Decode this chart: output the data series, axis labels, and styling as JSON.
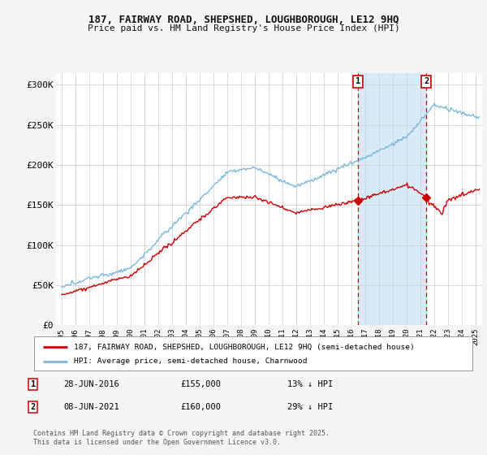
{
  "title1": "187, FAIRWAY ROAD, SHEPSHED, LOUGHBOROUGH, LE12 9HQ",
  "title2": "Price paid vs. HM Land Registry's House Price Index (HPI)",
  "ylabel_ticks": [
    "£0",
    "£50K",
    "£100K",
    "£150K",
    "£200K",
    "£250K",
    "£300K"
  ],
  "ytick_vals": [
    0,
    50000,
    100000,
    150000,
    200000,
    250000,
    300000
  ],
  "ylim": [
    0,
    315000
  ],
  "hpi_color": "#7ab8e0",
  "hpi_fill_color": "#d6eaf8",
  "price_color": "#cc0000",
  "marker1_date_x": 2016.49,
  "marker2_date_x": 2021.44,
  "legend_line1": "187, FAIRWAY ROAD, SHEPSHED, LOUGHBOROUGH, LE12 9HQ (semi-detached house)",
  "legend_line2": "HPI: Average price, semi-detached house, Charnwood",
  "annotation1_date": "28-JUN-2016",
  "annotation1_price": "£155,000",
  "annotation1_hpi": "13% ↓ HPI",
  "annotation2_date": "08-JUN-2021",
  "annotation2_price": "£160,000",
  "annotation2_hpi": "29% ↓ HPI",
  "footnote": "Contains HM Land Registry data © Crown copyright and database right 2025.\nThis data is licensed under the Open Government Licence v3.0.",
  "background_color": "#f5f5f5",
  "plot_bg_color": "#ffffff",
  "xlim_start": 1994.6,
  "xlim_end": 2025.5
}
